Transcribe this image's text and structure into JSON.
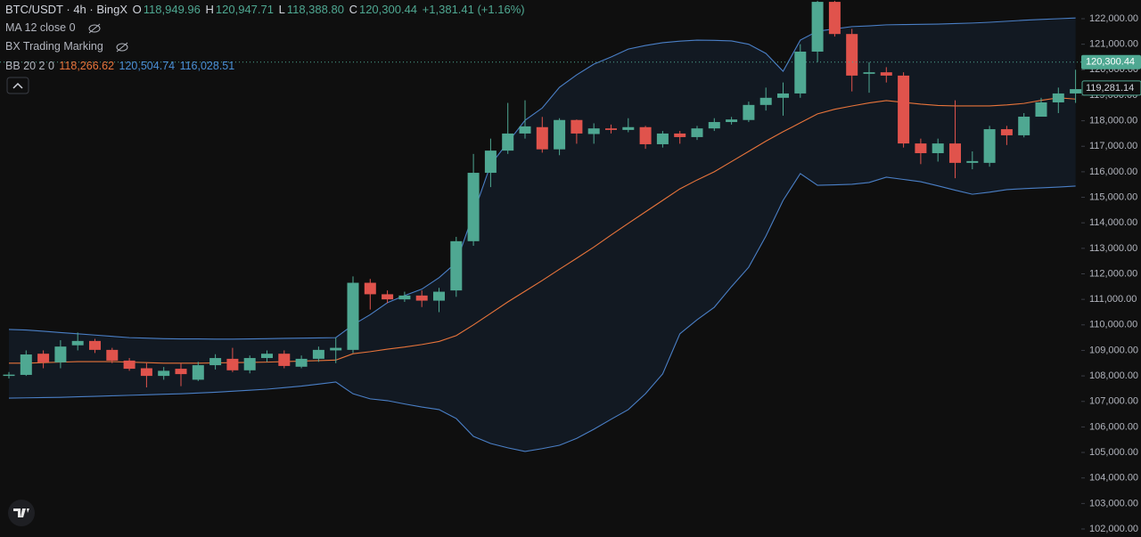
{
  "chart_data": {
    "type": "candlestick",
    "title": "BTC/USDT · 4h · BingX",
    "ohlc_legend": {
      "o_label": "O",
      "o": "118,949.96",
      "h_label": "H",
      "h": "120,947.71",
      "l_label": "L",
      "l": "118,388.80",
      "c_label": "C",
      "c": "120,300.44",
      "change": "+1,381.41 (+1.16%)"
    },
    "indicators": {
      "ma": "MA 12 close 0",
      "bx": "BX Trading Marking",
      "bb": "BB 20 2 0",
      "bb_values": [
        "118,266.62",
        "120,504.74",
        "116,028.51"
      ]
    },
    "up_color": "#4fa892",
    "down_color": "#e0534c",
    "categories": [
      null,
      null,
      null,
      null,
      null,
      null,
      null,
      null,
      null,
      null,
      null,
      null,
      null,
      null,
      null,
      null,
      null,
      null,
      null,
      null,
      null,
      null,
      null,
      null,
      null,
      null,
      null,
      null,
      null,
      null,
      null,
      null,
      null,
      null,
      null,
      null,
      null,
      null,
      null,
      null,
      null,
      null,
      null,
      null,
      null,
      null,
      null,
      null,
      null,
      null,
      null,
      null,
      null,
      null,
      null,
      null,
      null,
      null,
      null,
      null,
      null,
      null,
      null
    ],
    "open": [
      108000,
      108040,
      108870,
      108530,
      109200,
      109370,
      109020,
      108600,
      108300,
      108000,
      108280,
      107850,
      108420,
      108670,
      108220,
      108700,
      108870,
      108360,
      108670,
      109000,
      109020,
      111650,
      111200,
      111000,
      111150,
      110950,
      111350,
      113280,
      115960,
      116830,
      117500,
      117750,
      116880,
      118030,
      117480,
      117700,
      117640,
      117750,
      117080,
      117500,
      117360,
      117700,
      117950,
      118030,
      118620,
      118900,
      119070,
      120710,
      122660,
      121400,
      119840,
      119900,
      119770,
      117110,
      116730,
      117110,
      116350,
      116350,
      117670,
      117430,
      118160,
      118720,
      119070
    ],
    "high": [
      108150,
      109000,
      109000,
      109400,
      109700,
      109450,
      109100,
      108700,
      108500,
      108350,
      108500,
      108550,
      108850,
      109100,
      108800,
      109000,
      109000,
      108800,
      109150,
      109500,
      111900,
      111800,
      111350,
      111300,
      111350,
      111450,
      113450,
      116700,
      117300,
      118700,
      118800,
      118150,
      118100,
      118050,
      117900,
      117850,
      118100,
      117800,
      117600,
      117600,
      117800,
      118100,
      118150,
      118750,
      119300,
      119500,
      121000,
      122700,
      122700,
      121600,
      120300,
      120100,
      119900,
      117300,
      117300,
      118800,
      116800,
      117800,
      117800,
      118300,
      118900,
      119300,
      120000
    ],
    "low": [
      107900,
      108000,
      108300,
      108300,
      109000,
      108900,
      108500,
      108200,
      107550,
      107850,
      107600,
      107800,
      108250,
      108150,
      108100,
      108550,
      108300,
      108300,
      108550,
      108500,
      108900,
      110600,
      110850,
      110900,
      110700,
      110500,
      111100,
      113100,
      115400,
      116700,
      117300,
      116750,
      116650,
      117100,
      117100,
      117500,
      117550,
      116900,
      116950,
      117100,
      117250,
      117600,
      117850,
      117950,
      118400,
      118200,
      118900,
      120300,
      121300,
      119150,
      119100,
      119500,
      116950,
      116300,
      116400,
      115750,
      116100,
      116200,
      117050,
      117350,
      118200,
      118300,
      118700
    ],
    "close": [
      108050,
      108840,
      108530,
      109150,
      109370,
      109020,
      108600,
      108280,
      108000,
      108200,
      108070,
      108420,
      108700,
      108220,
      108700,
      108870,
      108390,
      108670,
      109020,
      109100,
      111650,
      111200,
      111000,
      111150,
      110950,
      111300,
      113280,
      115960,
      116830,
      117500,
      117780,
      116880,
      118030,
      117500,
      117700,
      117640,
      117750,
      117080,
      117500,
      117360,
      117700,
      117950,
      118050,
      118620,
      118900,
      119070,
      120710,
      122660,
      121400,
      119770,
      119900,
      119770,
      117110,
      116730,
      117110,
      116350,
      116420,
      117670,
      117430,
      118160,
      118720,
      119070,
      119240
    ],
    "series": [
      {
        "color": "#4a7fc6",
        "values": [
          109820,
          109800,
          109750,
          109700,
          109650,
          109600,
          109550,
          109500,
          109480,
          109460,
          109450,
          109450,
          109440,
          109440,
          109450,
          109460,
          109470,
          109480,
          109490,
          109500,
          110000,
          110400,
          110870,
          111150,
          111400,
          111850,
          112440,
          114360,
          116280,
          117150,
          118020,
          118500,
          119310,
          119800,
          120220,
          120500,
          120810,
          120950,
          121060,
          121120,
          121160,
          121150,
          121130,
          121000,
          120640,
          119940,
          121160,
          121510,
          121600,
          121690,
          121720,
          121760,
          121770,
          121780,
          121790,
          121810,
          121830,
          121860,
          121900,
          121940,
          121970,
          122000,
          122030
        ]
      },
      {
        "color": "#e8743b",
        "values": [
          108500,
          108500,
          108520,
          108540,
          108560,
          108560,
          108560,
          108540,
          108520,
          108500,
          108500,
          108500,
          108510,
          108520,
          108530,
          108540,
          108560,
          108580,
          108600,
          108620,
          108870,
          108950,
          109050,
          109130,
          109230,
          109350,
          109580,
          110000,
          110450,
          110900,
          111320,
          111740,
          112180,
          112610,
          113050,
          113520,
          113980,
          114430,
          114880,
          115330,
          115680,
          116000,
          116400,
          116800,
          117200,
          117570,
          117920,
          118270,
          118450,
          118580,
          118700,
          118790,
          118720,
          118650,
          118600,
          118580,
          118580,
          118580,
          118620,
          118680,
          118800,
          118900,
          118850
        ]
      },
      {
        "color": "#4a7fc6",
        "values": [
          107130,
          107140,
          107150,
          107160,
          107180,
          107200,
          107220,
          107240,
          107260,
          107280,
          107300,
          107330,
          107360,
          107400,
          107440,
          107480,
          107540,
          107600,
          107680,
          107760,
          107300,
          107100,
          107030,
          106900,
          106780,
          106680,
          106330,
          105630,
          105350,
          105180,
          105040,
          105150,
          105280,
          105550,
          105910,
          106300,
          106680,
          107300,
          108080,
          109650,
          110200,
          110690,
          111500,
          112260,
          113480,
          114880,
          115930,
          115470,
          115490,
          115510,
          115580,
          115790,
          115700,
          115610,
          115450,
          115280,
          115120,
          115200,
          115300,
          115340,
          115370,
          115400,
          115440
        ]
      }
    ],
    "last_price": {
      "value": 120300.44,
      "label": "120,300.44"
    },
    "ma_price": {
      "value": 119281.14,
      "label": "119,281.14"
    },
    "ylim": [
      101686,
      122733
    ],
    "yticks": [
      {
        "value": 102000,
        "label": "102,000.00"
      },
      {
        "value": 103000,
        "label": "103,000.00"
      },
      {
        "value": 104000,
        "label": "104,000.00"
      },
      {
        "value": 105000,
        "label": "105,000.00"
      },
      {
        "value": 106000,
        "label": "106,000.00"
      },
      {
        "value": 107000,
        "label": "107,000.00"
      },
      {
        "value": 108000,
        "label": "108,000.00"
      },
      {
        "value": 109000,
        "label": "109,000.00"
      },
      {
        "value": 110000,
        "label": "110,000.00"
      },
      {
        "value": 111000,
        "label": "111,000.00"
      },
      {
        "value": 112000,
        "label": "112,000.00"
      },
      {
        "value": 113000,
        "label": "113,000.00"
      },
      {
        "value": 114000,
        "label": "114,000.00"
      },
      {
        "value": 115000,
        "label": "115,000.00"
      },
      {
        "value": 116000,
        "label": "116,000.00"
      },
      {
        "value": 117000,
        "label": "117,000.00"
      },
      {
        "value": 118000,
        "label": "118,000.00"
      },
      {
        "value": 119000,
        "label": "119,000.00"
      },
      {
        "value": 120000,
        "label": "120,000.00"
      },
      {
        "value": 121000,
        "label": "121,000.00"
      },
      {
        "value": 122000,
        "label": "122,000.00"
      }
    ],
    "grid": false
  }
}
